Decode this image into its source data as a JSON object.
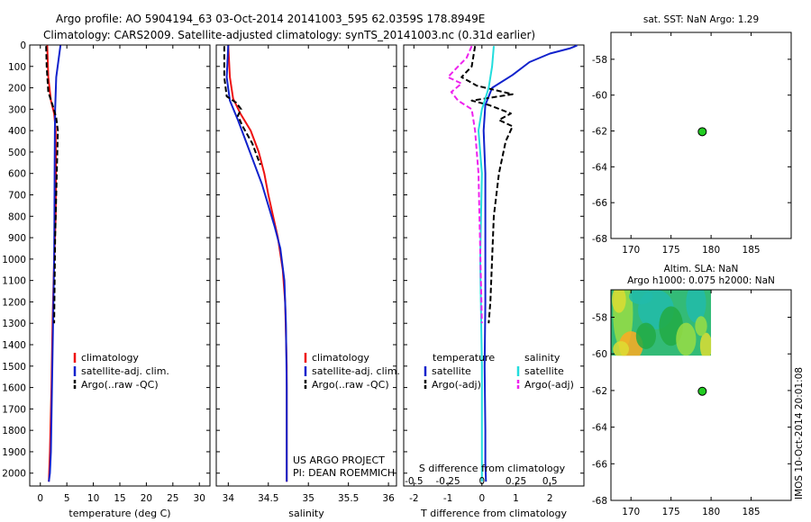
{
  "header": {
    "line1": "Argo profile: AO 5904194_63 03-Oct-2014 20141003_595 62.0359S 178.8949E",
    "line2": "Climatology: CARS2009. Satellite-adjusted climatology: synTS_20141003.nc (0.31d earlier)"
  },
  "side_text": "IMOS 10-Oct-2014 20:01:08",
  "depth_ticks": [
    "0",
    "100",
    "200",
    "300",
    "400",
    "500",
    "600",
    "700",
    "800",
    "900",
    "1000",
    "1100",
    "1200",
    "1300",
    "1400",
    "1500",
    "1600",
    "1700",
    "1800",
    "1900",
    "2000"
  ],
  "chart_data": [
    {
      "type": "line",
      "id": "temperature-profile",
      "xlabel": "temperature (deg C)",
      "xlim": [
        -2,
        32
      ],
      "ylim": [
        0,
        2060
      ],
      "y_reversed": true,
      "xticks": [
        0,
        5,
        10,
        15,
        20,
        25,
        30
      ],
      "yticks": [
        0,
        100,
        200,
        300,
        400,
        500,
        600,
        700,
        800,
        900,
        1000,
        1100,
        1200,
        1300,
        1400,
        1500,
        1600,
        1700,
        1800,
        1900,
        2000
      ],
      "legend": {
        "position": "bottom-right",
        "entries": [
          "climatology",
          "satellite-adj. clim.",
          "Argo(..raw -QC)"
        ]
      },
      "series": [
        {
          "name": "climatology",
          "color": "#ee1111",
          "dash": "solid",
          "x": [
            1.3,
            1.5,
            2.0,
            2.6,
            2.9,
            2.95,
            2.9,
            2.6,
            2.3,
            2.1,
            1.8,
            1.6
          ],
          "y": [
            2,
            150,
            260,
            320,
            400,
            600,
            800,
            1000,
            1300,
            1600,
            1900,
            2040
          ]
        },
        {
          "name": "satellite-adj. clim.",
          "color": "#1122cc",
          "dash": "solid",
          "x": [
            3.8,
            3.0,
            2.8,
            2.75,
            2.7,
            2.65,
            2.6,
            2.4,
            2.2,
            2.0,
            1.8,
            1.6
          ],
          "y": [
            2,
            150,
            300,
            400,
            600,
            800,
            1000,
            1300,
            1600,
            1900,
            2000,
            2040
          ]
        },
        {
          "name": "Argo(..raw -QC)",
          "color": "#000000",
          "dash": "dash",
          "x": [
            1.1,
            1.2,
            1.5,
            2.3,
            3.0,
            3.3,
            3.1,
            2.8,
            2.6
          ],
          "y": [
            5,
            100,
            220,
            280,
            340,
            400,
            600,
            900,
            1300
          ]
        }
      ]
    },
    {
      "type": "line",
      "id": "salinity-profile",
      "xlabel": "salinity",
      "xlim": [
        33.85,
        36.1
      ],
      "ylim": [
        0,
        2060
      ],
      "y_reversed": true,
      "xticks": [
        34,
        34.5,
        35,
        35.5,
        36
      ],
      "legend": {
        "position": "bottom-right",
        "entries": [
          "climatology",
          "satellite-adj. clim.",
          "Argo(..raw -QC)"
        ]
      },
      "annotations": [
        "US ARGO PROJECT",
        "PI: DEAN ROEMMICH"
      ],
      "series": [
        {
          "name": "climatology",
          "color": "#ee1111",
          "dash": "solid",
          "x": [
            34.0,
            34.02,
            34.06,
            34.15,
            34.28,
            34.38,
            34.45,
            34.5,
            34.56,
            34.62,
            34.68,
            34.71,
            34.73,
            34.73,
            34.73
          ],
          "y": [
            2,
            150,
            250,
            320,
            400,
            500,
            600,
            700,
            800,
            900,
            1050,
            1200,
            1500,
            1800,
            2040
          ]
        },
        {
          "name": "satellite-adj. clim.",
          "color": "#1122cc",
          "dash": "solid",
          "x": [
            34.0,
            33.98,
            34.02,
            34.12,
            34.22,
            34.32,
            34.42,
            34.5,
            34.58,
            34.65,
            34.7,
            34.72,
            34.73,
            34.73
          ],
          "y": [
            2,
            150,
            260,
            350,
            450,
            550,
            650,
            750,
            850,
            950,
            1100,
            1300,
            1600,
            2040
          ]
        },
        {
          "name": "Argo(..raw -QC)",
          "color": "#000000",
          "dash": "dash",
          "x": [
            33.95,
            33.95,
            33.98,
            34.1,
            34.16,
            34.12,
            34.18,
            34.3,
            34.4
          ],
          "y": [
            5,
            150,
            240,
            270,
            300,
            330,
            380,
            460,
            560
          ]
        }
      ]
    },
    {
      "type": "line",
      "id": "difference-profile",
      "xlabel": "T difference from climatology",
      "xlabel2": "S difference from climatology",
      "xlim": [
        -2.3,
        3.0
      ],
      "x2lim": [
        -0.575,
        0.75
      ],
      "ylim": [
        0,
        2060
      ],
      "y_reversed": true,
      "xticks": [
        -2,
        -1,
        0,
        1,
        2
      ],
      "x2ticks": [
        "-0.5",
        "-0.25",
        "0",
        "0.25",
        "0.5"
      ],
      "x2tick_values": [
        -0.5,
        -0.25,
        0,
        0.25,
        0.5
      ],
      "legend": {
        "position": "bottom",
        "group1": {
          "title": "temperature",
          "entries": [
            "satellite",
            "Argo(-adj)"
          ]
        },
        "group2": {
          "title": "salinity",
          "entries": [
            "satellite",
            "Argo(-adj)"
          ]
        }
      },
      "series": [
        {
          "name": "temperature satellite",
          "color": "#1122cc",
          "dash": "solid",
          "x": [
            2.8,
            2.6,
            2.0,
            1.4,
            0.9,
            0.3,
            0.1,
            0.05,
            0.1,
            0.1,
            0.1,
            0.08,
            0.1,
            0.1,
            0.12
          ],
          "y": [
            2,
            15,
            40,
            80,
            140,
            200,
            280,
            400,
            600,
            900,
            1200,
            1500,
            1800,
            1950,
            2040
          ]
        },
        {
          "name": "temperature Argo(-adj)",
          "color": "#000000",
          "dash": "dash",
          "x": [
            -0.2,
            -0.3,
            -0.6,
            -0.15,
            0.9,
            -0.3,
            0.2,
            0.85,
            0.5,
            0.9,
            0.7,
            0.5,
            0.35,
            0.3,
            0.25,
            0.2
          ],
          "y": [
            5,
            100,
            150,
            190,
            230,
            260,
            280,
            320,
            350,
            380,
            450,
            600,
            800,
            1000,
            1200,
            1300
          ]
        },
        {
          "name": "salinity satellite",
          "color": "#22dddd",
          "dash": "solid",
          "x": [
            0.35,
            0.3,
            0.2,
            0.1,
            0.0,
            -0.1,
            0.0,
            -0.05,
            0.0,
            0.0
          ],
          "y": [
            5,
            100,
            200,
            250,
            300,
            400,
            600,
            1000,
            1500,
            2040
          ]
        },
        {
          "name": "salinity Argo(-adj)",
          "color": "#ee22ee",
          "dash": "dash",
          "x": [
            -0.3,
            -0.45,
            -0.7,
            -1.0,
            -0.6,
            -0.9,
            -0.7,
            -0.3,
            -0.2,
            -0.1,
            0.0
          ],
          "y": [
            5,
            60,
            100,
            150,
            180,
            220,
            260,
            300,
            400,
            600,
            1300
          ]
        }
      ]
    },
    {
      "type": "scatter",
      "id": "sst-map",
      "title": "sat. SST: NaN Argo: 1.29",
      "xlim": [
        167.5,
        190
      ],
      "ylim": [
        -68,
        -56.5
      ],
      "xticks": [
        170,
        175,
        180,
        185
      ],
      "yticks": [
        -58,
        -60,
        -62,
        -64,
        -66,
        -68
      ],
      "points": [
        {
          "x": 178.9,
          "y": -62.04,
          "color": "#22cc22"
        }
      ]
    },
    {
      "type": "heatmap",
      "id": "sla-map",
      "title": "Altim. SLA: NaN",
      "subtitle": "Argo h1000: 0.075 h2000: NaN",
      "xlim": [
        167.5,
        190
      ],
      "ylim": [
        -68,
        -56.5
      ],
      "xticks": [
        170,
        175,
        180,
        185
      ],
      "yticks": [
        -58,
        -60,
        -62,
        -64,
        -66,
        -68
      ],
      "heatmap_extent": {
        "x": [
          167.5,
          180
        ],
        "y": [
          -60.1,
          -56.5
        ]
      },
      "heatmap_colors": [
        "#22aa44",
        "#33bb77",
        "#22bbaa",
        "#99dd44",
        "#dddd33",
        "#ffaa22"
      ],
      "points": [
        {
          "x": 178.9,
          "y": -62.04,
          "color": "#22cc22"
        }
      ]
    }
  ]
}
